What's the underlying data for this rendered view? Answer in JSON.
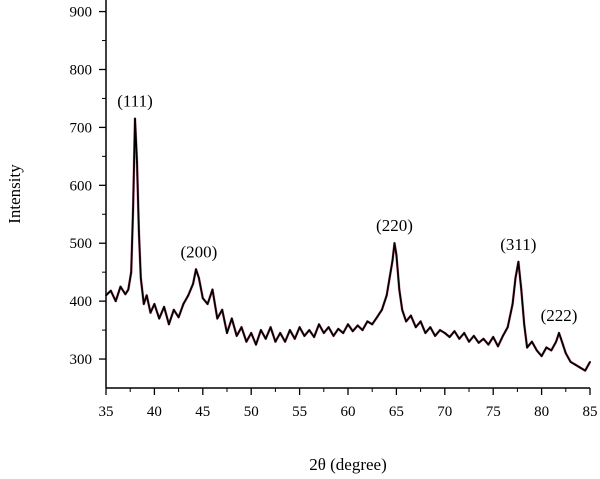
{
  "chart_data": {
    "type": "line",
    "xlabel": "2θ (degree)",
    "ylabel": "Intensity",
    "xlim": [
      35,
      85
    ],
    "ylim": [
      250,
      920
    ],
    "x_ticks": [
      "35",
      "40",
      "45",
      "50",
      "55",
      "60",
      "65",
      "70",
      "75",
      "80",
      "85"
    ],
    "y_ticks": [
      "300",
      "400",
      "500",
      "600",
      "700",
      "800",
      "900"
    ],
    "grid": false,
    "series": [
      {
        "color": "#000000",
        "accent_color": "#c0306a",
        "x": [
          35.0,
          35.5,
          36.0,
          36.5,
          37.0,
          37.3,
          37.6,
          37.8,
          38.0,
          38.2,
          38.4,
          38.6,
          38.9,
          39.2,
          39.6,
          40.0,
          40.5,
          41.0,
          41.5,
          42.0,
          42.5,
          43.0,
          43.5,
          44.0,
          44.3,
          44.6,
          45.0,
          45.5,
          46.0,
          46.5,
          47.0,
          47.5,
          48.0,
          48.5,
          49.0,
          49.5,
          50.0,
          50.5,
          51.0,
          51.5,
          52.0,
          52.5,
          53.0,
          53.5,
          54.0,
          54.5,
          55.0,
          55.5,
          56.0,
          56.5,
          57.0,
          57.5,
          58.0,
          58.5,
          59.0,
          59.5,
          60.0,
          60.5,
          61.0,
          61.5,
          62.0,
          62.5,
          63.0,
          63.5,
          64.0,
          64.3,
          64.6,
          64.8,
          65.0,
          65.3,
          65.6,
          66.0,
          66.5,
          67.0,
          67.5,
          68.0,
          68.5,
          69.0,
          69.5,
          70.0,
          70.5,
          71.0,
          71.5,
          72.0,
          72.5,
          73.0,
          73.5,
          74.0,
          74.5,
          75.0,
          75.5,
          76.0,
          76.5,
          77.0,
          77.3,
          77.6,
          77.9,
          78.2,
          78.5,
          79.0,
          79.5,
          80.0,
          80.5,
          81.0,
          81.5,
          81.8,
          82.0,
          82.5,
          83.0,
          83.5,
          84.0,
          84.5,
          85.0
        ],
        "values": [
          410,
          418,
          400,
          425,
          412,
          420,
          450,
          560,
          715,
          640,
          520,
          440,
          395,
          410,
          380,
          395,
          370,
          390,
          360,
          385,
          372,
          395,
          410,
          430,
          455,
          440,
          405,
          395,
          420,
          370,
          385,
          345,
          370,
          340,
          355,
          330,
          345,
          325,
          350,
          335,
          355,
          330,
          345,
          330,
          350,
          335,
          355,
          340,
          350,
          338,
          360,
          345,
          355,
          340,
          352,
          345,
          360,
          348,
          358,
          350,
          365,
          360,
          372,
          385,
          410,
          440,
          470,
          500,
          480,
          420,
          385,
          365,
          375,
          355,
          365,
          345,
          355,
          340,
          350,
          345,
          338,
          348,
          335,
          345,
          330,
          340,
          328,
          335,
          325,
          338,
          322,
          340,
          355,
          395,
          440,
          468,
          420,
          360,
          320,
          330,
          315,
          305,
          320,
          315,
          330,
          345,
          335,
          310,
          295,
          290,
          285,
          280,
          295
        ],
        "peak_labels": [
          {
            "x": 38.0,
            "y": 715,
            "label": "(111)"
          },
          {
            "x": 44.6,
            "y": 455,
            "label": "(200)"
          },
          {
            "x": 64.8,
            "y": 500,
            "label": "(220)"
          },
          {
            "x": 77.6,
            "y": 468,
            "label": "(311)"
          },
          {
            "x": 81.8,
            "y": 345,
            "label": "(222)"
          }
        ]
      }
    ]
  }
}
